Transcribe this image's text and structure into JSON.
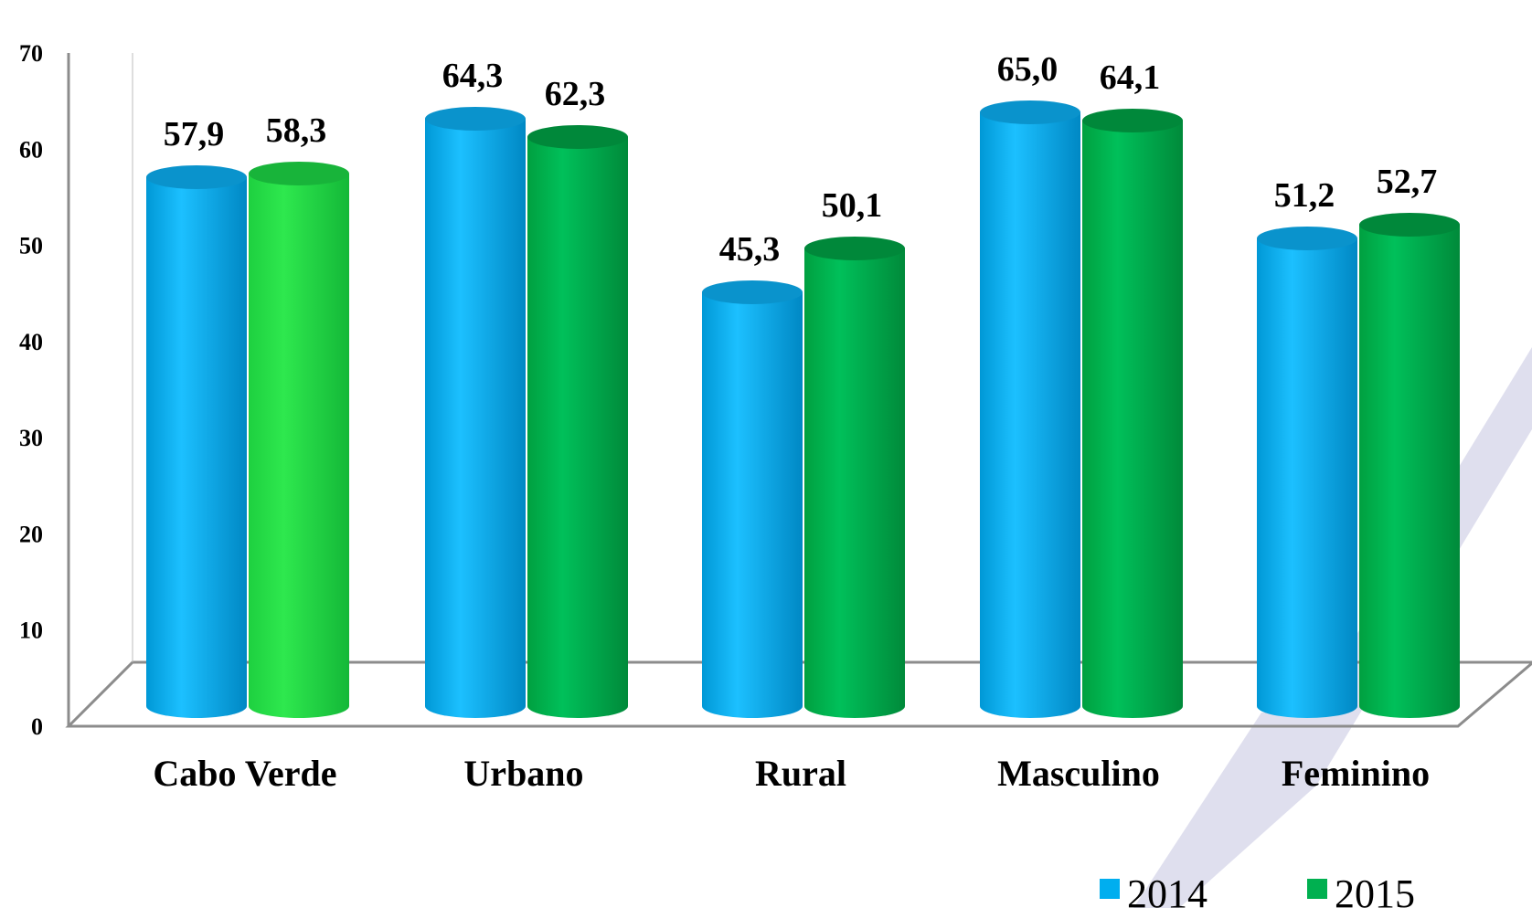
{
  "chart_data": {
    "type": "bar",
    "categories": [
      "Cabo Verde",
      "Urbano",
      "Rural",
      "Masculino",
      "Feminino"
    ],
    "series": [
      {
        "name": "2014",
        "values": [
          57.9,
          64.3,
          45.3,
          65.0,
          51.2
        ],
        "labels": [
          "57,9",
          "64,3",
          "45,3",
          "65,0",
          "51,2"
        ],
        "color": "#00aeef"
      },
      {
        "name": "2015",
        "values": [
          58.3,
          62.3,
          50.1,
          64.1,
          52.7
        ],
        "labels": [
          "58,3",
          "62,3",
          "50,1",
          "64,1",
          "52,7"
        ],
        "color": "#00b050"
      }
    ],
    "yticks": [
      "0",
      "10",
      "20",
      "30",
      "40",
      "50",
      "60",
      "70"
    ],
    "ylim": [
      0,
      70
    ],
    "grid": false,
    "legend_position": "bottom-right",
    "bar_shape": "cylinder"
  }
}
